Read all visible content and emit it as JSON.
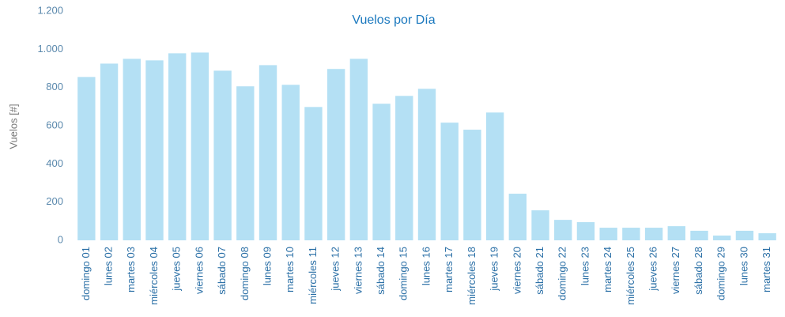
{
  "chart_data": {
    "type": "bar",
    "title": "Vuelos por Día",
    "y_label": "Vuelos [#]",
    "categories": [
      "domingo 01",
      "lunes 02",
      "martes 03",
      "miércoles 04",
      "jueves 05",
      "viernes 06",
      "sábado 07",
      "domingo 08",
      "lunes 09",
      "martes 10",
      "miércoles 11",
      "jueves 12",
      "viernes 13",
      "sábado 14",
      "domingo 15",
      "lunes 16",
      "martes 17",
      "miércoles 18",
      "jueves 19",
      "viernes 20",
      "sábado 21",
      "domingo 22",
      "lunes 23",
      "martes 24",
      "miércoles 25",
      "jueves 26",
      "viernes 27",
      "sábado 28",
      "domingo 29",
      "lunes 30",
      "martes 31"
    ],
    "values": [
      855,
      925,
      950,
      942,
      979,
      983,
      888,
      806,
      917,
      814,
      698,
      897,
      950,
      715,
      756,
      793,
      616,
      579,
      669,
      244,
      157,
      107,
      95,
      66,
      66,
      66,
      74,
      50,
      25,
      50,
      37
    ],
    "color": "#b4e0f4",
    "ylim": [
      0,
      1200
    ],
    "yticks": [
      0,
      200,
      400,
      600,
      800,
      {
        "value": 1000,
        "label": "1.000"
      },
      {
        "value": 1200,
        "label": "1.200"
      }
    ],
    "grid": false
  }
}
